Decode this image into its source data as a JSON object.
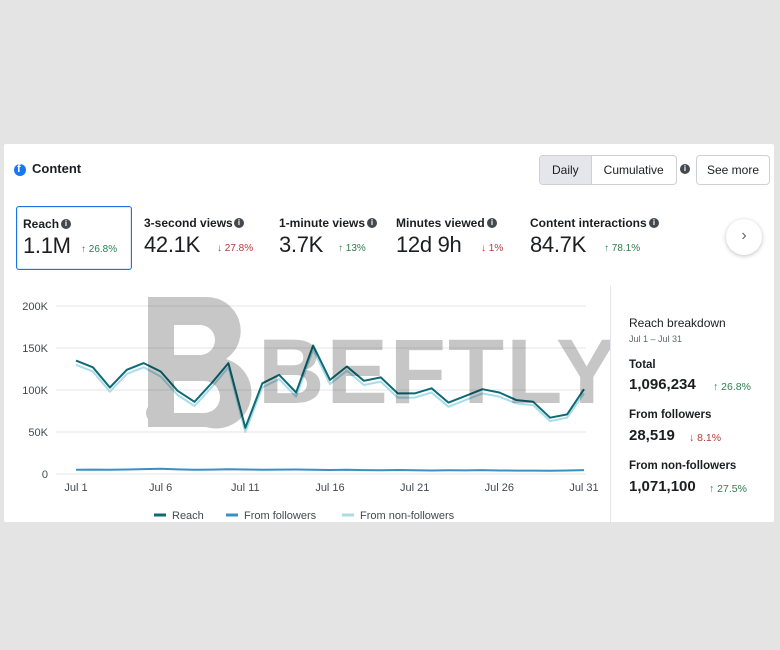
{
  "header": {
    "title": "Content",
    "fb_icon": "facebook-icon",
    "toggle": [
      {
        "label": "Daily",
        "active": true
      },
      {
        "label": "Cumulative",
        "active": false
      }
    ],
    "see_more_label": "See more"
  },
  "metrics": [
    {
      "label": "Reach",
      "value": "1.1M",
      "change": "26.8%",
      "direction": "up",
      "selected": true
    },
    {
      "label": "3-second views",
      "value": "42.1K",
      "change": "27.8%",
      "direction": "down",
      "selected": false
    },
    {
      "label": "1-minute views",
      "value": "3.7K",
      "change": "13%",
      "direction": "up",
      "selected": false
    },
    {
      "label": "Minutes viewed",
      "value": "12d 9h",
      "change": "1%",
      "direction": "down",
      "selected": false
    },
    {
      "label": "Content interactions",
      "value": "84.7K",
      "change": "78.1%",
      "direction": "up",
      "selected": false
    }
  ],
  "arrows": {
    "up": "↑",
    "down": "↓"
  },
  "next_icon": "chevron-right-icon",
  "chart_data": {
    "type": "line",
    "x": [
      "Jul 1",
      "Jul 2",
      "Jul 3",
      "Jul 4",
      "Jul 5",
      "Jul 6",
      "Jul 7",
      "Jul 8",
      "Jul 9",
      "Jul 10",
      "Jul 11",
      "Jul 12",
      "Jul 13",
      "Jul 14",
      "Jul 15",
      "Jul 16",
      "Jul 17",
      "Jul 18",
      "Jul 19",
      "Jul 20",
      "Jul 21",
      "Jul 22",
      "Jul 23",
      "Jul 24",
      "Jul 25",
      "Jul 26",
      "Jul 27",
      "Jul 28",
      "Jul 29",
      "Jul 30",
      "Jul 31"
    ],
    "xticks": [
      "Jul 1",
      "Jul 6",
      "Jul 11",
      "Jul 16",
      "Jul 21",
      "Jul 26",
      "Jul 31"
    ],
    "yticks": [
      "0",
      "50K",
      "100K",
      "150K",
      "200K"
    ],
    "ylim": [
      0,
      200000
    ],
    "grid": true,
    "legend_position": "bottom",
    "series": [
      {
        "name": "Reach",
        "color": "#0e6b75",
        "values": [
          135000,
          127000,
          103000,
          124000,
          132000,
          122000,
          99000,
          86000,
          108000,
          132000,
          55000,
          108000,
          118000,
          97000,
          153000,
          112000,
          128000,
          111000,
          115000,
          96000,
          96000,
          102000,
          85000,
          93000,
          101000,
          97000,
          88000,
          86000,
          67000,
          71000,
          101000
        ]
      },
      {
        "name": "From followers",
        "color": "#3a8fc4",
        "values": [
          5000,
          5200,
          5000,
          5400,
          5800,
          6200,
          5500,
          5000,
          5200,
          5600,
          5400,
          5000,
          5200,
          5300,
          5100,
          4800,
          5000,
          4600,
          4500,
          4800,
          4500,
          4200,
          4400,
          4300,
          4700,
          4200,
          4100,
          4000,
          3800,
          4200,
          4600
        ]
      },
      {
        "name": "From non-followers",
        "color": "#a9dde8",
        "values": [
          130000,
          122000,
          98000,
          119000,
          127000,
          116000,
          94000,
          81000,
          103000,
          127000,
          50000,
          103000,
          113000,
          92000,
          148000,
          107000,
          123000,
          106000,
          110000,
          91000,
          91000,
          97000,
          80000,
          88000,
          96000,
          92000,
          84000,
          82000,
          63000,
          67000,
          96000
        ]
      }
    ]
  },
  "breakdown": {
    "title": "Reach breakdown",
    "subtitle": "Jul 1 – Jul 31",
    "items": [
      {
        "label": "Total",
        "value": "1,096,234",
        "change": "26.8%",
        "direction": "up"
      },
      {
        "label": "From followers",
        "value": "28,519",
        "change": "8.1%",
        "direction": "down"
      },
      {
        "label": "From non-followers",
        "value": "1,071,100",
        "change": "27.5%",
        "direction": "up"
      }
    ]
  },
  "watermark": {
    "text": "BEFTLY",
    "icon": "beftly-logo-icon"
  }
}
